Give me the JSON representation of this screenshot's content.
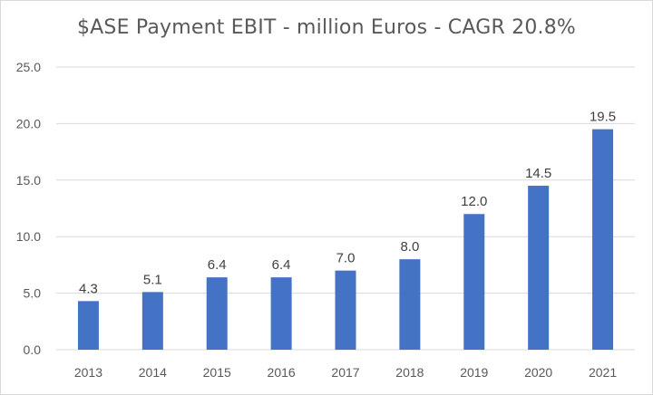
{
  "chart_data": {
    "type": "bar",
    "title": "$ASE Payment EBIT - million Euros - CAGR 20.8%",
    "categories": [
      "2013",
      "2014",
      "2015",
      "2016",
      "2017",
      "2018",
      "2019",
      "2020",
      "2021"
    ],
    "values": [
      4.3,
      5.1,
      6.4,
      6.4,
      7.0,
      8.0,
      12.0,
      14.5,
      19.5
    ],
    "data_labels": [
      "4.3",
      "5.1",
      "6.4",
      "6.4",
      "7.0",
      "8.0",
      "12.0",
      "14.5",
      "19.5"
    ],
    "xlabel": "",
    "ylabel": "",
    "ylim": [
      0,
      25
    ],
    "yticks": [
      "0.0",
      "5.0",
      "10.0",
      "15.0",
      "20.0",
      "25.0"
    ],
    "grid": true,
    "legend": "none",
    "colors": {
      "bar": "#4472C4",
      "grid": "#d9d9d9",
      "text": "#595959"
    }
  }
}
